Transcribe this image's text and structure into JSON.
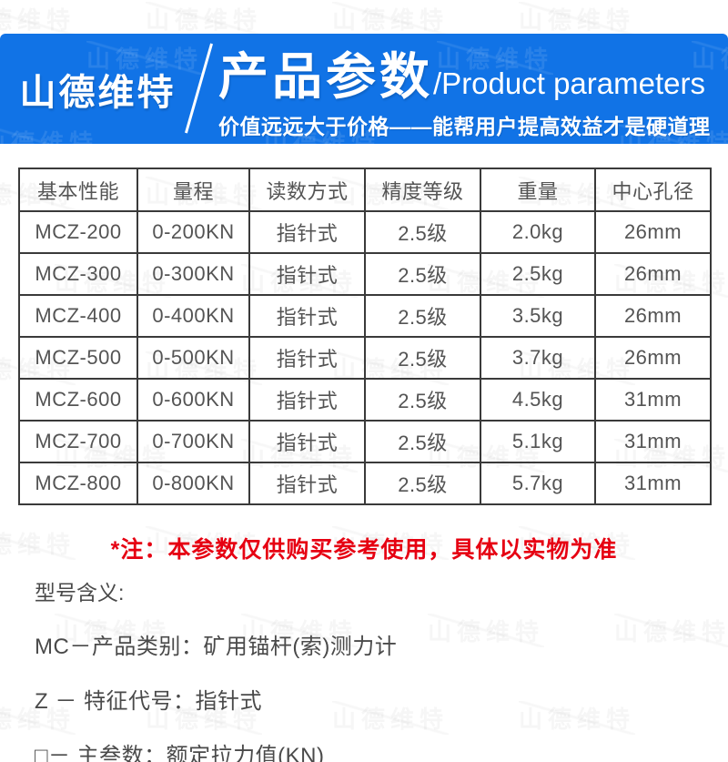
{
  "watermark": {
    "text": "山德维特"
  },
  "header": {
    "brand": "山德维特",
    "title_cn": "产品参数",
    "title_en": "/Product parameters",
    "subtitle": "价值远远大于价格——能帮用户提高效益才是硬道理",
    "bg_color": "#1173e6"
  },
  "table": {
    "headers": [
      "基本性能",
      "量程",
      "读数方式",
      "精度等级",
      "重量",
      "中心孔径"
    ],
    "rows": [
      [
        "MCZ-200",
        "0-200KN",
        "指针式",
        "2.5级",
        "2.0kg",
        "26mm"
      ],
      [
        "MCZ-300",
        "0-300KN",
        "指针式",
        "2.5级",
        "2.5kg",
        "26mm"
      ],
      [
        "MCZ-400",
        "0-400KN",
        "指针式",
        "2.5级",
        "3.5kg",
        "26mm"
      ],
      [
        "MCZ-500",
        "0-500KN",
        "指针式",
        "2.5级",
        "3.7kg",
        "26mm"
      ],
      [
        "MCZ-600",
        "0-600KN",
        "指针式",
        "2.5级",
        "4.5kg",
        "31mm"
      ],
      [
        "MCZ-700",
        "0-700KN",
        "指针式",
        "2.5级",
        "5.1kg",
        "31mm"
      ],
      [
        "MCZ-800",
        "0-800KN",
        "指针式",
        "2.5级",
        "5.7kg",
        "31mm"
      ]
    ]
  },
  "note": {
    "text": "*注：本参数仅供购买参考使用，具体以实物为准",
    "color": "#e60012"
  },
  "model_meaning": {
    "title": "型号含义:",
    "lines": [
      "MC－产品类别：矿用锚杆(索)测力计",
      "Z － 特征代号：指针式",
      "□－ 主叁数：额定拉力值(KN)"
    ]
  }
}
